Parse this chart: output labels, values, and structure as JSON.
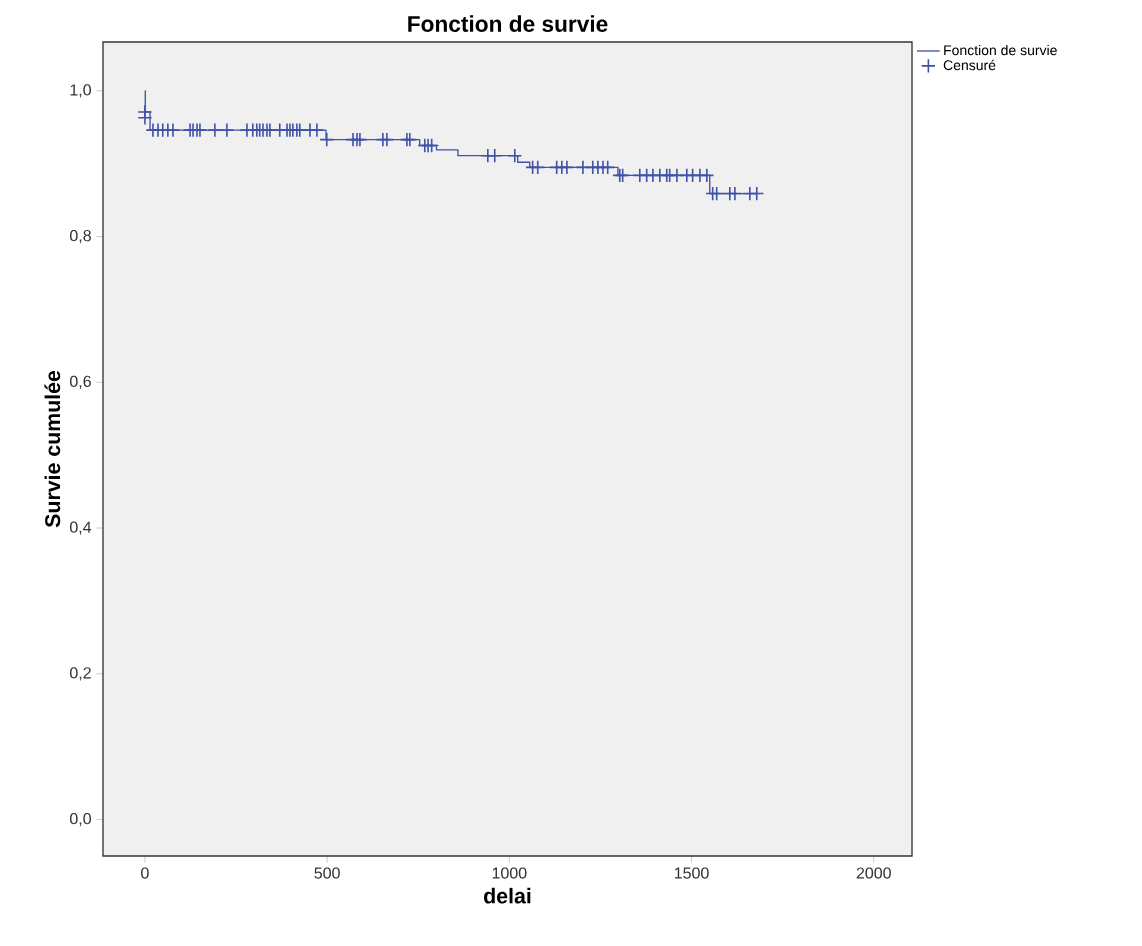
{
  "chart_data": {
    "type": "step",
    "title": "Fonction de survie",
    "xlabel": "delai",
    "ylabel": "Survie cumulée",
    "xlim": [
      -115,
      2105
    ],
    "ylim": [
      -0.05,
      1.067
    ],
    "xticks": [
      0,
      500,
      1000,
      1500,
      2000
    ],
    "yticks": [
      {
        "value": 0,
        "label": "0,0"
      },
      {
        "value": 0.2,
        "label": "0,2"
      },
      {
        "value": 0.4,
        "label": "0,4"
      },
      {
        "value": 0.6,
        "label": "0,6"
      },
      {
        "value": 0.8,
        "label": "0,8"
      },
      {
        "value": 1.0,
        "label": "1,0"
      }
    ],
    "grid": false,
    "legend": "top right",
    "series": [
      {
        "name": "Fonction de survie",
        "color": "#3f51a8",
        "marker": "none",
        "x": [
          0,
          1,
          14,
          497,
          754,
          800,
          859,
          1023,
          1056,
          1298,
          1550,
          1679
        ],
        "values": [
          1.0,
          0.971,
          0.946,
          0.933,
          0.925,
          0.919,
          0.911,
          0.902,
          0.895,
          0.884,
          0.859,
          0.859
        ]
      },
      {
        "name": "Censuré",
        "type": "scatter",
        "color": "#3f51a8",
        "marker": "cross",
        "x": [
          0,
          0,
          22,
          36,
          49,
          63,
          77,
          124,
          132,
          143,
          151,
          192,
          225,
          280,
          296,
          307,
          315,
          324,
          335,
          343,
          370,
          390,
          398,
          406,
          417,
          425,
          453,
          472,
          499,
          571,
          582,
          590,
          653,
          664,
          719,
          727,
          768,
          777,
          787,
          941,
          960,
          1015,
          1064,
          1078,
          1130,
          1144,
          1158,
          1202,
          1229,
          1243,
          1257,
          1270,
          1303,
          1311,
          1358,
          1377,
          1394,
          1413,
          1432,
          1440,
          1460,
          1487,
          1503,
          1523,
          1542,
          1558,
          1569,
          1605,
          1619,
          1660,
          1679
        ],
        "values": [
          0.971,
          0.963,
          0.946,
          0.946,
          0.946,
          0.946,
          0.946,
          0.946,
          0.946,
          0.946,
          0.946,
          0.946,
          0.946,
          0.946,
          0.946,
          0.946,
          0.946,
          0.946,
          0.946,
          0.946,
          0.946,
          0.946,
          0.946,
          0.946,
          0.946,
          0.946,
          0.946,
          0.946,
          0.933,
          0.933,
          0.933,
          0.933,
          0.933,
          0.933,
          0.933,
          0.933,
          0.925,
          0.925,
          0.925,
          0.911,
          0.911,
          0.911,
          0.895,
          0.895,
          0.895,
          0.895,
          0.895,
          0.895,
          0.895,
          0.895,
          0.895,
          0.895,
          0.884,
          0.884,
          0.884,
          0.884,
          0.884,
          0.884,
          0.884,
          0.884,
          0.884,
          0.884,
          0.884,
          0.884,
          0.884,
          0.859,
          0.859,
          0.859,
          0.859,
          0.859,
          0.859
        ]
      }
    ]
  }
}
